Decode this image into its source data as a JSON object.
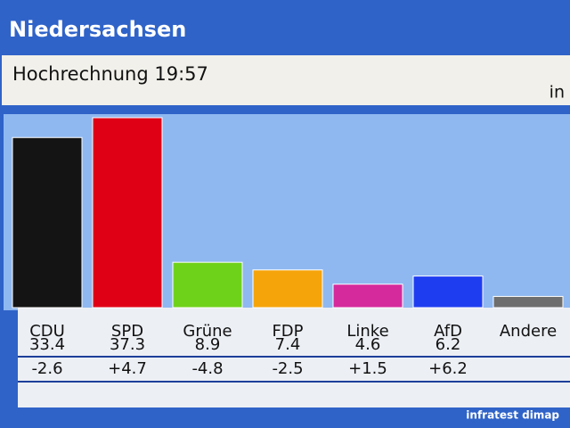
{
  "chart_data": {
    "type": "bar",
    "title": "Niedersachsen",
    "subtitle": "Hochrechnung 19:57",
    "unit_note": "in",
    "categories": [
      "CDU",
      "SPD",
      "Grüne",
      "FDP",
      "Linke",
      "AfD",
      "Andere"
    ],
    "values": [
      33.4,
      37.3,
      8.9,
      7.4,
      4.6,
      6.2,
      2.2
    ],
    "value_labels": [
      "33.4",
      "37.3",
      "8.9",
      "7.4",
      "4.6",
      "6.2",
      null
    ],
    "changes": [
      "-2.6",
      "+4.7",
      "-4.8",
      "-2.5",
      "+1.5",
      "+6.2",
      null
    ],
    "colors": [
      "#141414",
      "#e00016",
      "#6fd21a",
      "#f5a40a",
      "#d42a9c",
      "#1f3df0",
      "#6e6e6e"
    ],
    "source": "infratest dimap"
  }
}
